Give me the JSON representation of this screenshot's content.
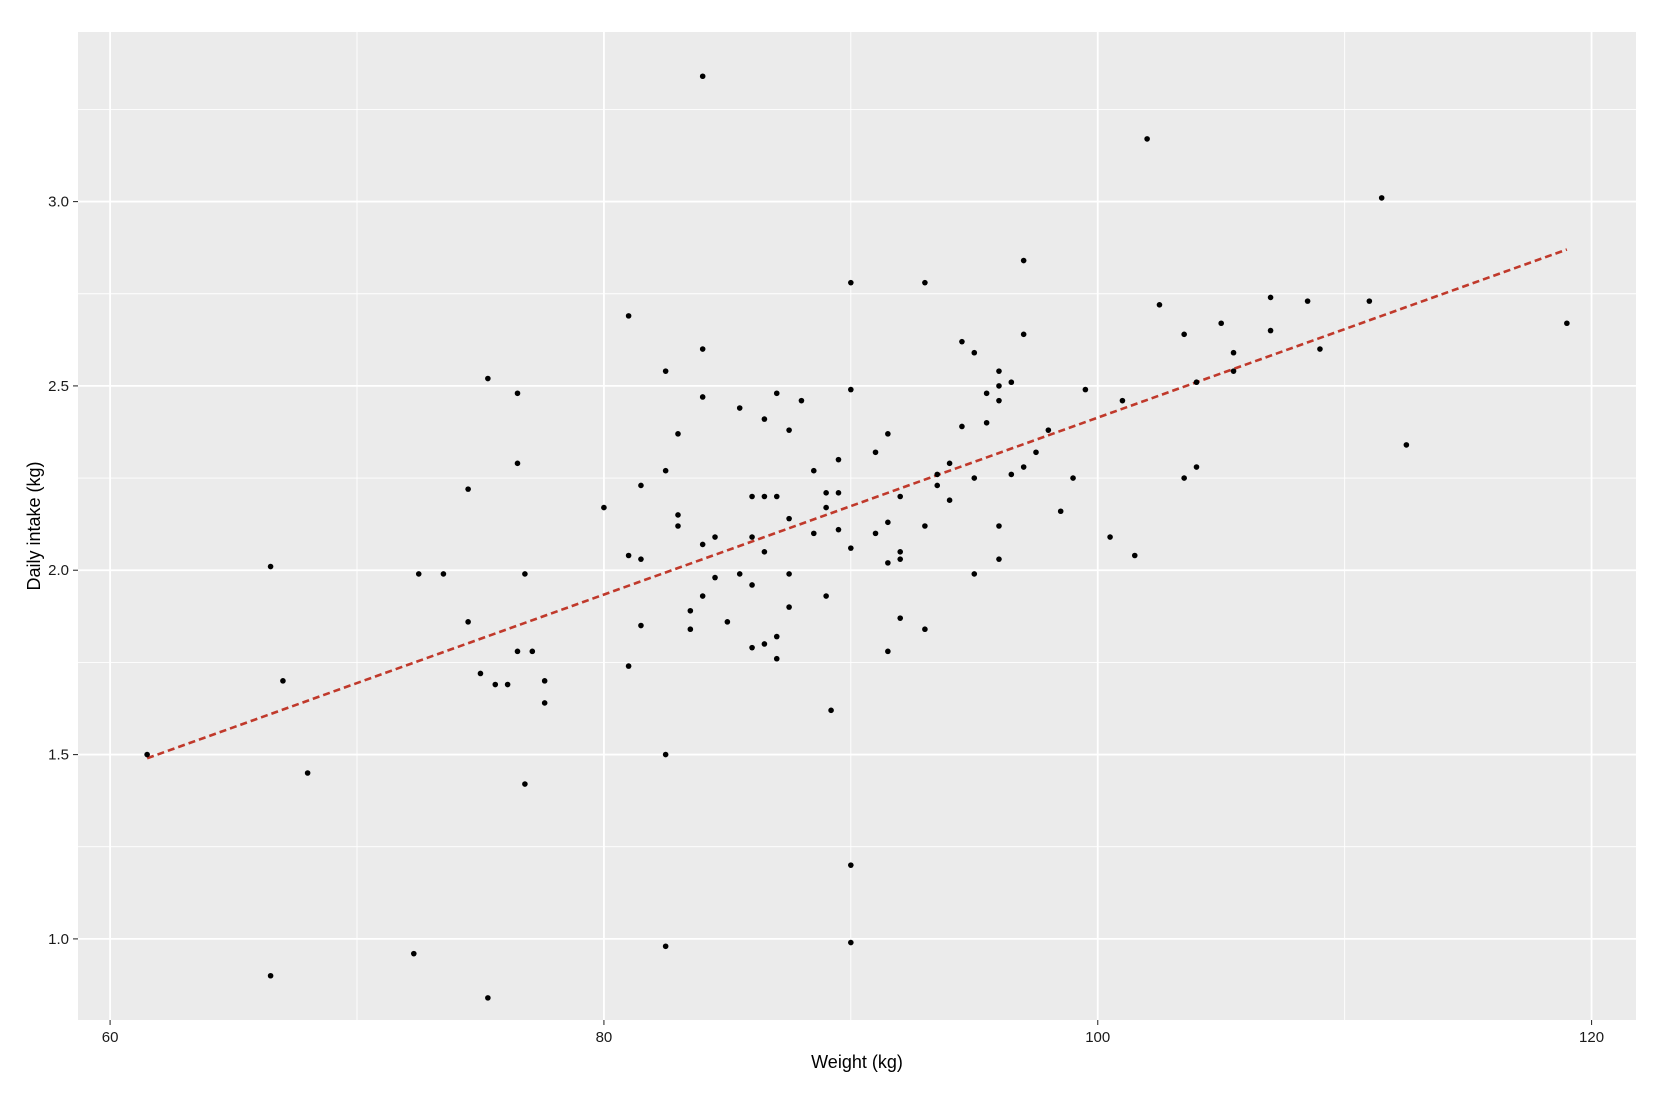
{
  "chart_data": {
    "type": "scatter",
    "title": "",
    "xlabel": "Weight (kg)",
    "ylabel": "Daily intake (kg)",
    "xlim": [
      58.7,
      121.8
    ],
    "ylim": [
      0.78,
      3.46
    ],
    "x_ticks": [
      60,
      80,
      100,
      120
    ],
    "x_tick_labels": [
      "60",
      "80",
      "100",
      "120"
    ],
    "y_ticks": [
      1.0,
      1.5,
      2.0,
      2.5,
      3.0
    ],
    "y_tick_labels": [
      "1.0",
      "1.5",
      "2.0",
      "2.5",
      "3.0"
    ],
    "grid": true,
    "legend": "none",
    "colors": {
      "panel": "#ebebeb",
      "grid": "#ffffff",
      "point": "#000000",
      "trend": "#c0392b"
    },
    "points": [
      [
        61.5,
        1.5
      ],
      [
        66.5,
        2.01
      ],
      [
        66.5,
        0.9
      ],
      [
        67.0,
        1.7
      ],
      [
        68.0,
        1.45
      ],
      [
        72.3,
        0.96
      ],
      [
        72.5,
        1.99
      ],
      [
        73.5,
        1.99
      ],
      [
        74.5,
        2.22
      ],
      [
        74.5,
        1.86
      ],
      [
        75.0,
        1.72
      ],
      [
        75.3,
        2.52
      ],
      [
        75.3,
        0.84
      ],
      [
        75.6,
        1.69
      ],
      [
        76.1,
        1.69
      ],
      [
        76.5,
        2.48
      ],
      [
        76.5,
        2.29
      ],
      [
        76.5,
        1.78
      ],
      [
        76.8,
        1.99
      ],
      [
        76.8,
        1.42
      ],
      [
        77.1,
        1.78
      ],
      [
        77.6,
        1.7
      ],
      [
        77.6,
        1.64
      ],
      [
        80.0,
        2.17
      ],
      [
        81.0,
        2.69
      ],
      [
        81.0,
        2.04
      ],
      [
        81.0,
        1.74
      ],
      [
        81.5,
        2.23
      ],
      [
        81.5,
        2.03
      ],
      [
        81.5,
        1.85
      ],
      [
        82.5,
        2.54
      ],
      [
        82.5,
        2.27
      ],
      [
        82.5,
        1.5
      ],
      [
        82.5,
        0.98
      ],
      [
        83.0,
        2.37
      ],
      [
        83.0,
        2.15
      ],
      [
        83.0,
        2.12
      ],
      [
        83.5,
        1.89
      ],
      [
        83.5,
        1.84
      ],
      [
        84.0,
        3.34
      ],
      [
        84.0,
        2.6
      ],
      [
        84.0,
        2.47
      ],
      [
        84.0,
        2.07
      ],
      [
        84.0,
        1.93
      ],
      [
        84.5,
        2.09
      ],
      [
        84.5,
        1.98
      ],
      [
        85.0,
        1.86
      ],
      [
        85.5,
        2.44
      ],
      [
        85.5,
        1.99
      ],
      [
        86.0,
        2.2
      ],
      [
        86.0,
        2.09
      ],
      [
        86.0,
        1.96
      ],
      [
        86.0,
        1.79
      ],
      [
        86.5,
        2.41
      ],
      [
        86.5,
        2.2
      ],
      [
        86.5,
        2.05
      ],
      [
        86.5,
        1.8
      ],
      [
        87.0,
        2.48
      ],
      [
        87.0,
        2.2
      ],
      [
        87.0,
        1.82
      ],
      [
        87.0,
        1.76
      ],
      [
        87.5,
        2.38
      ],
      [
        87.5,
        2.14
      ],
      [
        87.5,
        1.99
      ],
      [
        87.5,
        1.9
      ],
      [
        88.0,
        2.46
      ],
      [
        88.5,
        2.27
      ],
      [
        88.5,
        2.1
      ],
      [
        89.0,
        2.21
      ],
      [
        89.0,
        2.17
      ],
      [
        89.0,
        1.93
      ],
      [
        89.2,
        1.62
      ],
      [
        89.5,
        2.3
      ],
      [
        89.5,
        2.21
      ],
      [
        89.5,
        2.11
      ],
      [
        90.0,
        2.78
      ],
      [
        90.0,
        2.49
      ],
      [
        90.0,
        2.06
      ],
      [
        90.0,
        1.2
      ],
      [
        90.0,
        0.99
      ],
      [
        91.0,
        2.32
      ],
      [
        91.0,
        2.1
      ],
      [
        91.5,
        2.37
      ],
      [
        91.5,
        2.13
      ],
      [
        91.5,
        2.02
      ],
      [
        91.5,
        1.78
      ],
      [
        92.0,
        2.2
      ],
      [
        92.0,
        2.05
      ],
      [
        92.0,
        2.03
      ],
      [
        92.0,
        1.87
      ],
      [
        93.0,
        2.78
      ],
      [
        93.0,
        2.12
      ],
      [
        93.0,
        1.84
      ],
      [
        93.5,
        2.26
      ],
      [
        93.5,
        2.23
      ],
      [
        94.0,
        2.29
      ],
      [
        94.0,
        2.19
      ],
      [
        94.5,
        2.62
      ],
      [
        94.5,
        2.39
      ],
      [
        95.0,
        2.59
      ],
      [
        95.0,
        2.25
      ],
      [
        95.0,
        1.99
      ],
      [
        95.5,
        2.48
      ],
      [
        95.5,
        2.4
      ],
      [
        96.0,
        2.54
      ],
      [
        96.0,
        2.5
      ],
      [
        96.0,
        2.46
      ],
      [
        96.0,
        2.12
      ],
      [
        96.0,
        2.03
      ],
      [
        96.5,
        2.51
      ],
      [
        96.5,
        2.26
      ],
      [
        97.0,
        2.84
      ],
      [
        97.0,
        2.64
      ],
      [
        97.0,
        2.28
      ],
      [
        97.5,
        2.32
      ],
      [
        98.0,
        2.38
      ],
      [
        98.5,
        2.16
      ],
      [
        99.0,
        2.25
      ],
      [
        99.5,
        2.49
      ],
      [
        100.5,
        2.09
      ],
      [
        101.0,
        2.46
      ],
      [
        101.5,
        2.04
      ],
      [
        102.0,
        3.17
      ],
      [
        102.5,
        2.72
      ],
      [
        103.5,
        2.64
      ],
      [
        103.5,
        2.25
      ],
      [
        104.0,
        2.51
      ],
      [
        104.0,
        2.28
      ],
      [
        105.0,
        2.67
      ],
      [
        105.5,
        2.59
      ],
      [
        105.5,
        2.54
      ],
      [
        107.0,
        2.74
      ],
      [
        107.0,
        2.65
      ],
      [
        108.5,
        2.73
      ],
      [
        109.0,
        2.6
      ],
      [
        111.0,
        2.73
      ],
      [
        111.5,
        3.01
      ],
      [
        112.5,
        2.34
      ],
      [
        119.0,
        2.67
      ]
    ],
    "trend_line": {
      "style": "dashed",
      "x": [
        61.5,
        119.0
      ],
      "y": [
        1.49,
        2.87
      ]
    }
  }
}
